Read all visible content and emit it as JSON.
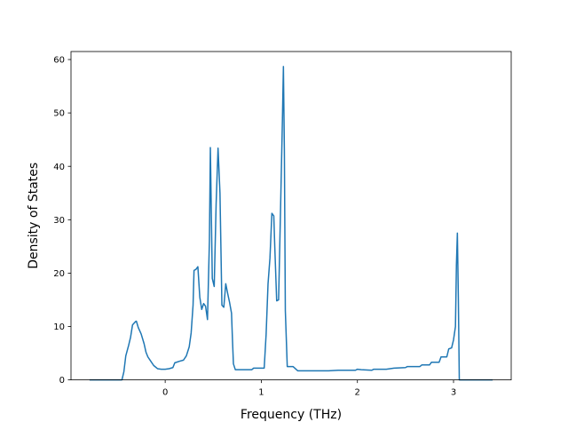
{
  "chart_data": {
    "type": "line",
    "xlabel": "Frequency (THz)",
    "ylabel": "Density of States",
    "xlim": [
      -0.98,
      3.6
    ],
    "ylim": [
      0,
      61.5
    ],
    "xticks": [
      0,
      1,
      2,
      3
    ],
    "yticks": [
      0,
      10,
      20,
      30,
      40,
      50,
      60
    ],
    "grid": false,
    "colors": {
      "line": "#1f77b4",
      "axes": "#000000",
      "background": "#ffffff"
    },
    "series": [
      {
        "points": [
          [
            -0.78,
            0
          ],
          [
            -0.45,
            0
          ],
          [
            -0.43,
            1.5
          ],
          [
            -0.41,
            4.5
          ],
          [
            -0.38,
            6.5
          ],
          [
            -0.36,
            8
          ],
          [
            -0.34,
            10.3
          ],
          [
            -0.31,
            10.9
          ],
          [
            -0.3,
            11
          ],
          [
            -0.28,
            9.8
          ],
          [
            -0.25,
            8.6
          ],
          [
            -0.22,
            6.8
          ],
          [
            -0.2,
            5.2
          ],
          [
            -0.18,
            4.3
          ],
          [
            -0.15,
            3.5
          ],
          [
            -0.12,
            2.7
          ],
          [
            -0.08,
            2.1
          ],
          [
            -0.04,
            2.0
          ],
          [
            0.0,
            2.0
          ],
          [
            0.04,
            2.1
          ],
          [
            0.08,
            2.3
          ],
          [
            0.1,
            3.2
          ],
          [
            0.15,
            3.5
          ],
          [
            0.19,
            3.7
          ],
          [
            0.22,
            4.5
          ],
          [
            0.25,
            6.2
          ],
          [
            0.27,
            8.8
          ],
          [
            0.29,
            14
          ],
          [
            0.3,
            20.5
          ],
          [
            0.32,
            20.7
          ],
          [
            0.34,
            21.2
          ],
          [
            0.36,
            15.5
          ],
          [
            0.38,
            13.2
          ],
          [
            0.4,
            14.3
          ],
          [
            0.42,
            13.8
          ],
          [
            0.44,
            11.3
          ],
          [
            0.46,
            26
          ],
          [
            0.47,
            43.5
          ],
          [
            0.49,
            19
          ],
          [
            0.51,
            17.5
          ],
          [
            0.53,
            33
          ],
          [
            0.55,
            43.4
          ],
          [
            0.57,
            35
          ],
          [
            0.59,
            14
          ],
          [
            0.61,
            13.6
          ],
          [
            0.63,
            18
          ],
          [
            0.65,
            16.2
          ],
          [
            0.67,
            14.5
          ],
          [
            0.69,
            12.5
          ],
          [
            0.7,
            7.5
          ],
          [
            0.71,
            3
          ],
          [
            0.73,
            1.9
          ],
          [
            0.8,
            1.9
          ],
          [
            0.9,
            1.9
          ],
          [
            0.92,
            2.2
          ],
          [
            0.98,
            2.2
          ],
          [
            1.03,
            2.2
          ],
          [
            1.05,
            8.5
          ],
          [
            1.07,
            18
          ],
          [
            1.09,
            22.8
          ],
          [
            1.11,
            31.2
          ],
          [
            1.13,
            30.7
          ],
          [
            1.14,
            25
          ],
          [
            1.16,
            14.8
          ],
          [
            1.18,
            15
          ],
          [
            1.2,
            31.8
          ],
          [
            1.22,
            49
          ],
          [
            1.23,
            58.7
          ],
          [
            1.24,
            43
          ],
          [
            1.25,
            13
          ],
          [
            1.27,
            2.5
          ],
          [
            1.3,
            2.5
          ],
          [
            1.33,
            2.5
          ],
          [
            1.38,
            1.7
          ],
          [
            1.5,
            1.7
          ],
          [
            1.7,
            1.7
          ],
          [
            1.8,
            1.8
          ],
          [
            1.98,
            1.8
          ],
          [
            2.0,
            2.0
          ],
          [
            2.04,
            1.9
          ],
          [
            2.15,
            1.8
          ],
          [
            2.17,
            2.0
          ],
          [
            2.3,
            2.0
          ],
          [
            2.38,
            2.2
          ],
          [
            2.5,
            2.3
          ],
          [
            2.52,
            2.5
          ],
          [
            2.65,
            2.5
          ],
          [
            2.67,
            2.8
          ],
          [
            2.75,
            2.8
          ],
          [
            2.77,
            3.3
          ],
          [
            2.85,
            3.3
          ],
          [
            2.87,
            4.3
          ],
          [
            2.93,
            4.3
          ],
          [
            2.95,
            5.8
          ],
          [
            2.98,
            6.0
          ],
          [
            3.0,
            7.5
          ],
          [
            3.02,
            10
          ],
          [
            3.03,
            21.5
          ],
          [
            3.04,
            27.5
          ],
          [
            3.05,
            15.5
          ],
          [
            3.06,
            0
          ],
          [
            3.4,
            0
          ]
        ]
      }
    ]
  }
}
